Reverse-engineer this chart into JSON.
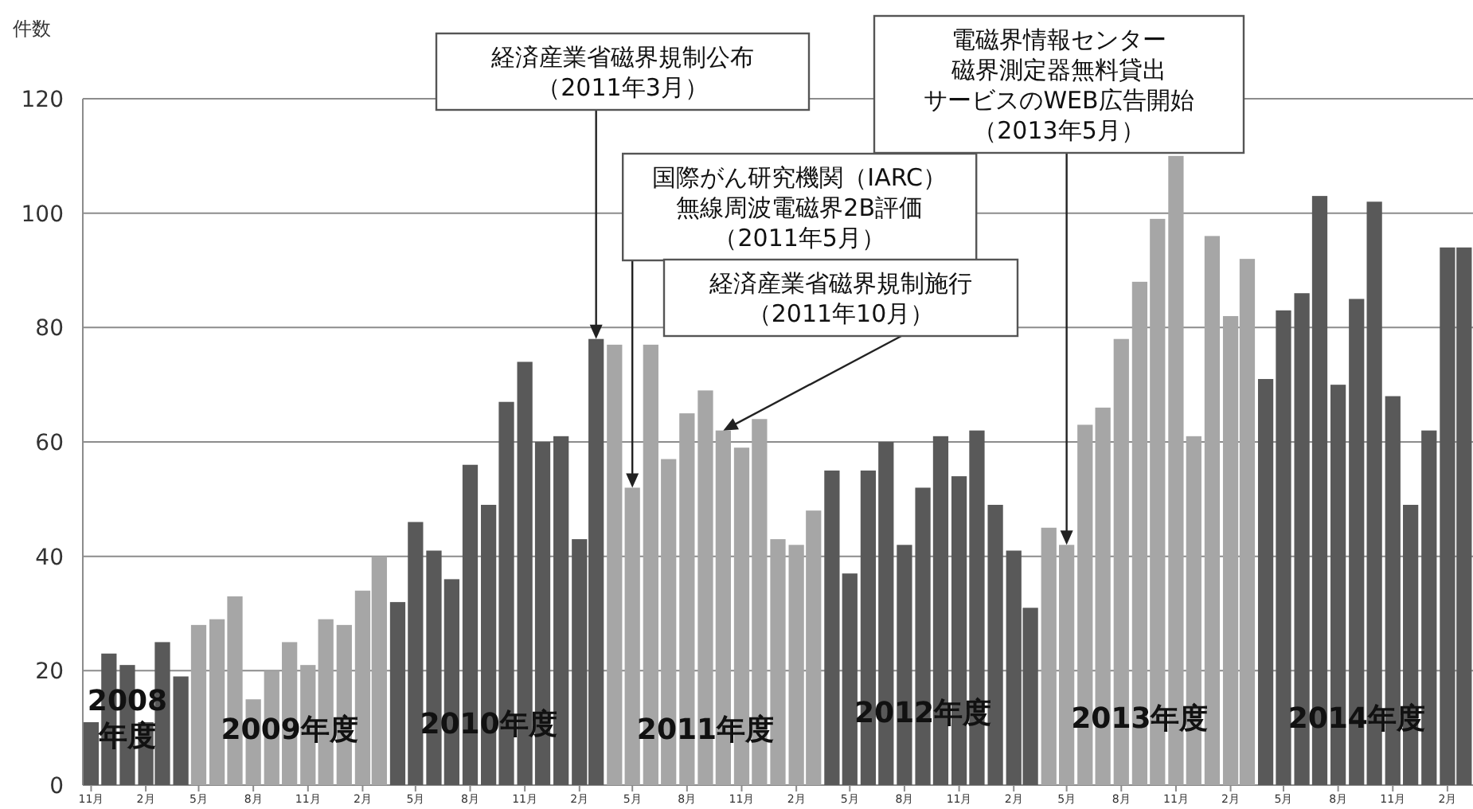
{
  "chart_data": {
    "type": "bar",
    "ylabel": "件数",
    "x": [
      "2008-11",
      "2008-12",
      "2009-01",
      "2009-02",
      "2009-03",
      "2009-04",
      "2009-05",
      "2009-06",
      "2009-07",
      "2009-08",
      "2009-09",
      "2009-10",
      "2009-11",
      "2009-12",
      "2010-01",
      "2010-02",
      "2010-03",
      "2010-04",
      "2010-05",
      "2010-06",
      "2010-07",
      "2010-08",
      "2010-09",
      "2010-10",
      "2010-11",
      "2010-12",
      "2011-01",
      "2011-02",
      "2011-03",
      "2011-04",
      "2011-05",
      "2011-06",
      "2011-07",
      "2011-08",
      "2011-09",
      "2011-10",
      "2011-11",
      "2011-12",
      "2012-01",
      "2012-02",
      "2012-03",
      "2012-04",
      "2012-05",
      "2012-06",
      "2012-07",
      "2012-08",
      "2012-09",
      "2012-10",
      "2012-11",
      "2012-12",
      "2013-01",
      "2013-02",
      "2013-03",
      "2013-04",
      "2013-05",
      "2013-06",
      "2013-07",
      "2013-08",
      "2013-09",
      "2013-10",
      "2013-11",
      "2013-12",
      "2014-01",
      "2014-02",
      "2014-03",
      "2014-04",
      "2014-05",
      "2014-06",
      "2014-07",
      "2014-08",
      "2014-09",
      "2014-10",
      "2014-11",
      "2014-12",
      "2015-01",
      "2015-02",
      "2015-03"
    ],
    "values": [
      11,
      23,
      21,
      11,
      25,
      19,
      28,
      29,
      33,
      15,
      20,
      25,
      21,
      29,
      28,
      34,
      40,
      32,
      46,
      41,
      36,
      56,
      49,
      67,
      74,
      60,
      61,
      43,
      78,
      77,
      52,
      77,
      57,
      65,
      69,
      62,
      59,
      64,
      43,
      42,
      48,
      55,
      37,
      55,
      60,
      42,
      52,
      61,
      54,
      62,
      49,
      41,
      31,
      45,
      42,
      63,
      66,
      78,
      88,
      99,
      110,
      61,
      96,
      82,
      92,
      71,
      83,
      86,
      103,
      70,
      85,
      102,
      68,
      49,
      62,
      94,
      94
    ],
    "colors": [
      "#595959",
      "#595959",
      "#595959",
      "#595959",
      "#595959",
      "#595959",
      "#a6a6a6",
      "#a6a6a6",
      "#a6a6a6",
      "#a6a6a6",
      "#a6a6a6",
      "#a6a6a6",
      "#a6a6a6",
      "#a6a6a6",
      "#a6a6a6",
      "#a6a6a6",
      "#a6a6a6",
      "#595959",
      "#595959",
      "#595959",
      "#595959",
      "#595959",
      "#595959",
      "#595959",
      "#595959",
      "#595959",
      "#595959",
      "#595959",
      "#595959",
      "#a6a6a6",
      "#a6a6a6",
      "#a6a6a6",
      "#a6a6a6",
      "#a6a6a6",
      "#a6a6a6",
      "#a6a6a6",
      "#a6a6a6",
      "#a6a6a6",
      "#a6a6a6",
      "#a6a6a6",
      "#a6a6a6",
      "#595959",
      "#595959",
      "#595959",
      "#595959",
      "#595959",
      "#595959",
      "#595959",
      "#595959",
      "#595959",
      "#595959",
      "#595959",
      "#595959",
      "#a6a6a6",
      "#a6a6a6",
      "#a6a6a6",
      "#a6a6a6",
      "#a6a6a6",
      "#a6a6a6",
      "#a6a6a6",
      "#a6a6a6",
      "#a6a6a6",
      "#a6a6a6",
      "#a6a6a6",
      "#a6a6a6",
      "#595959",
      "#595959",
      "#595959",
      "#595959",
      "#595959",
      "#595959",
      "#595959",
      "#595959",
      "#595959",
      "#595959",
      "#595959",
      "#595959"
    ],
    "xlim": [
      "2008-10-18",
      "2015-03-16"
    ],
    "xticks": [
      {
        "value": "2008-11",
        "label": "11月"
      },
      {
        "value": "2009-02",
        "label": "2月"
      },
      {
        "value": "2009-05",
        "label": "5月"
      },
      {
        "value": "2009-08",
        "label": "8月"
      },
      {
        "value": "2009-11",
        "label": "11月"
      },
      {
        "value": "2010-02",
        "label": "2月"
      },
      {
        "value": "2010-05",
        "label": "5月"
      },
      {
        "value": "2010-08",
        "label": "8月"
      },
      {
        "value": "2010-11",
        "label": "11月"
      },
      {
        "value": "2011-02",
        "label": "2月"
      },
      {
        "value": "2011-05",
        "label": "5月"
      },
      {
        "value": "2011-08",
        "label": "8月"
      },
      {
        "value": "2011-11",
        "label": "11月"
      },
      {
        "value": "2012-02",
        "label": "2月"
      },
      {
        "value": "2012-05",
        "label": "5月"
      },
      {
        "value": "2012-08",
        "label": "8月"
      },
      {
        "value": "2012-11",
        "label": "11月"
      },
      {
        "value": "2013-02",
        "label": "2月"
      },
      {
        "value": "2013-05",
        "label": "5月"
      },
      {
        "value": "2013-08",
        "label": "8月"
      },
      {
        "value": "2013-11",
        "label": "11月"
      },
      {
        "value": "2014-02",
        "label": "2月"
      },
      {
        "value": "2014-05",
        "label": "5月"
      },
      {
        "value": "2014-08",
        "label": "8月"
      },
      {
        "value": "2014-11",
        "label": "11月"
      },
      {
        "value": "2015-02",
        "label": "2月"
      }
    ],
    "ylim": [
      0,
      120
    ],
    "yticks": [
      0,
      20,
      40,
      60,
      80,
      100,
      120
    ],
    "grid": "y",
    "annotations": [
      {
        "text": "経済産業省磁界規制公布（2011年3月）",
        "x": "2011-03",
        "y": 78
      },
      {
        "text": "国際がん研究機関（IARC）無線周波電磁界2B評価（2011年5月）",
        "x": "2011-05",
        "y": 52
      },
      {
        "text": "経済産業省磁界規制施行（2011年10月）",
        "x": "2011-10",
        "y": 62
      },
      {
        "text": "電磁界情報センター磁界測定器無料貸出サービスのWEB広告開始（2013年5月）",
        "x": "2013-05",
        "y": 42
      },
      {
        "text": "2008\n年度",
        "x": "2009-01",
        "y": 12
      },
      {
        "text": "2009年度",
        "x": "2009-10",
        "y": 10
      },
      {
        "text": "2010年度",
        "x": "2010-09",
        "y": 11
      },
      {
        "text": "2011年度",
        "x": "2011-09",
        "y": 10
      },
      {
        "text": "2012年度",
        "x": "2012-09",
        "y": 13
      },
      {
        "text": "2013年度",
        "x": "2013-09",
        "y": 12
      },
      {
        "text": "2014年度",
        "x": "2014-09",
        "y": 12
      }
    ]
  }
}
